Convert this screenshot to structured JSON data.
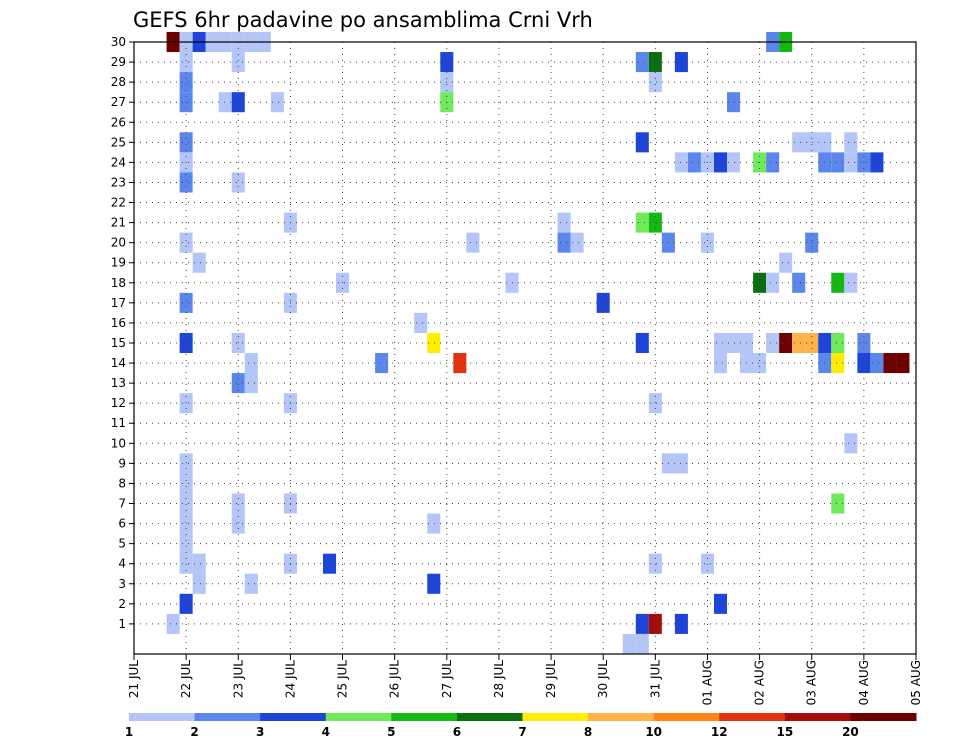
{
  "chart_data": {
    "type": "heatmap",
    "title": "GEFS 6hr padavine po ansamblima Crni Vrh",
    "xlabel": "",
    "ylabel": "",
    "x_ticks": [
      "21 JUL",
      "22 JUL",
      "23 JUL",
      "24 JUL",
      "25 JUL",
      "26 JUL",
      "27 JUL",
      "28 JUL",
      "29 JUL",
      "30 JUL",
      "31 JUL",
      "01 AUG",
      "02 AUG",
      "03 AUG",
      "04 AUG",
      "05 AUG"
    ],
    "y_ticks": [
      "1",
      "2",
      "3",
      "4",
      "5",
      "6",
      "7",
      "8",
      "9",
      "10",
      "11",
      "12",
      "13",
      "14",
      "15",
      "16",
      "17",
      "18",
      "19",
      "20",
      "21",
      "22",
      "23",
      "24",
      "25",
      "26",
      "27",
      "28",
      "29",
      "30"
    ],
    "time_steps_6hr": 61,
    "ensemble_members": 30,
    "grid": true,
    "colorbar": {
      "labels": [
        "1",
        "2",
        "3",
        "4",
        "5",
        "6",
        "7",
        "8",
        "10",
        "12",
        "15",
        "20"
      ],
      "colors": [
        "#b3c6f7",
        "#5b87ec",
        "#1f45d8",
        "#6fea5a",
        "#13b812",
        "#0b6e10",
        "#ffee00",
        "#ffb14a",
        "#ff8418",
        "#e0330e",
        "#a40d0d",
        "#6e0000"
      ]
    },
    "cells": [
      [
        3,
        30,
        "#6e0000"
      ],
      [
        4,
        30,
        "#b3c6f7"
      ],
      [
        5,
        30,
        "#1f45d8"
      ],
      [
        6,
        30,
        "#b3c6f7"
      ],
      [
        7,
        30,
        "#b3c6f7"
      ],
      [
        8,
        30,
        "#b3c6f7"
      ],
      [
        9,
        30,
        "#b3c6f7"
      ],
      [
        10,
        30,
        "#b3c6f7"
      ],
      [
        49,
        30,
        "#5b87ec"
      ],
      [
        50,
        30,
        "#13b812"
      ],
      [
        4,
        29,
        "#b3c6f7"
      ],
      [
        8,
        29,
        "#b3c6f7"
      ],
      [
        24,
        29,
        "#1f45d8"
      ],
      [
        39,
        29,
        "#5b87ec"
      ],
      [
        40,
        29,
        "#0b6e10"
      ],
      [
        42,
        29,
        "#1f45d8"
      ],
      [
        4,
        28,
        "#5b87ec"
      ],
      [
        24,
        28,
        "#b3c6f7"
      ],
      [
        40,
        28,
        "#b3c6f7"
      ],
      [
        4,
        27,
        "#5b87ec"
      ],
      [
        7,
        27,
        "#b3c6f7"
      ],
      [
        8,
        27,
        "#1f45d8"
      ],
      [
        11,
        27,
        "#b3c6f7"
      ],
      [
        24,
        27,
        "#6fea5a"
      ],
      [
        46,
        27,
        "#5b87ec"
      ],
      [
        4,
        25,
        "#5b87ec"
      ],
      [
        39,
        25,
        "#1f45d8"
      ],
      [
        51,
        25,
        "#b3c6f7"
      ],
      [
        52,
        25,
        "#b3c6f7"
      ],
      [
        53,
        25,
        "#b3c6f7"
      ],
      [
        55,
        25,
        "#b3c6f7"
      ],
      [
        4,
        24,
        "#b3c6f7"
      ],
      [
        42,
        24,
        "#b3c6f7"
      ],
      [
        43,
        24,
        "#5b87ec"
      ],
      [
        44,
        24,
        "#b3c6f7"
      ],
      [
        45,
        24,
        "#1f45d8"
      ],
      [
        46,
        24,
        "#b3c6f7"
      ],
      [
        48,
        24,
        "#6fea5a"
      ],
      [
        49,
        24,
        "#5b87ec"
      ],
      [
        53,
        24,
        "#5b87ec"
      ],
      [
        54,
        24,
        "#5b87ec"
      ],
      [
        55,
        24,
        "#b3c6f7"
      ],
      [
        56,
        24,
        "#5b87ec"
      ],
      [
        57,
        24,
        "#1f45d8"
      ],
      [
        4,
        23,
        "#5b87ec"
      ],
      [
        8,
        23,
        "#b3c6f7"
      ],
      [
        12,
        21,
        "#b3c6f7"
      ],
      [
        33,
        21,
        "#b3c6f7"
      ],
      [
        39,
        21,
        "#6fea5a"
      ],
      [
        40,
        21,
        "#13b812"
      ],
      [
        4,
        20,
        "#b3c6f7"
      ],
      [
        26,
        20,
        "#b3c6f7"
      ],
      [
        33,
        20,
        "#5b87ec"
      ],
      [
        34,
        20,
        "#b3c6f7"
      ],
      [
        41,
        20,
        "#5b87ec"
      ],
      [
        44,
        20,
        "#b3c6f7"
      ],
      [
        52,
        20,
        "#5b87ec"
      ],
      [
        5,
        19,
        "#b3c6f7"
      ],
      [
        50,
        19,
        "#b3c6f7"
      ],
      [
        16,
        18,
        "#b3c6f7"
      ],
      [
        29,
        18,
        "#b3c6f7"
      ],
      [
        48,
        18,
        "#0b6e10"
      ],
      [
        49,
        18,
        "#b3c6f7"
      ],
      [
        51,
        18,
        "#5b87ec"
      ],
      [
        54,
        18,
        "#13b812"
      ],
      [
        55,
        18,
        "#b3c6f7"
      ],
      [
        4,
        17,
        "#5b87ec"
      ],
      [
        12,
        17,
        "#b3c6f7"
      ],
      [
        36,
        17,
        "#1f45d8"
      ],
      [
        22,
        16,
        "#b3c6f7"
      ],
      [
        4,
        15,
        "#1f45d8"
      ],
      [
        8,
        15,
        "#b3c6f7"
      ],
      [
        23,
        15,
        "#ffee00"
      ],
      [
        39,
        15,
        "#1f45d8"
      ],
      [
        45,
        15,
        "#b3c6f7"
      ],
      [
        46,
        15,
        "#b3c6f7"
      ],
      [
        47,
        15,
        "#b3c6f7"
      ],
      [
        49,
        15,
        "#b3c6f7"
      ],
      [
        50,
        15,
        "#6e0000"
      ],
      [
        51,
        15,
        "#ffb14a"
      ],
      [
        52,
        15,
        "#ffb14a"
      ],
      [
        53,
        15,
        "#1f45d8"
      ],
      [
        54,
        15,
        "#6fea5a"
      ],
      [
        56,
        15,
        "#5b87ec"
      ],
      [
        9,
        14,
        "#b3c6f7"
      ],
      [
        19,
        14,
        "#5b87ec"
      ],
      [
        25,
        14,
        "#e0330e"
      ],
      [
        45,
        14,
        "#b3c6f7"
      ],
      [
        47,
        14,
        "#b3c6f7"
      ],
      [
        48,
        14,
        "#b3c6f7"
      ],
      [
        53,
        14,
        "#5b87ec"
      ],
      [
        54,
        14,
        "#ffee00"
      ],
      [
        56,
        14,
        "#1f45d8"
      ],
      [
        57,
        14,
        "#5b87ec"
      ],
      [
        58,
        14,
        "#6e0000"
      ],
      [
        59,
        14,
        "#6e0000"
      ],
      [
        8,
        13,
        "#5b87ec"
      ],
      [
        9,
        13,
        "#b3c6f7"
      ],
      [
        4,
        12,
        "#b3c6f7"
      ],
      [
        12,
        12,
        "#b3c6f7"
      ],
      [
        40,
        12,
        "#b3c6f7"
      ],
      [
        55,
        10,
        "#b3c6f7"
      ],
      [
        4,
        9,
        "#b3c6f7"
      ],
      [
        41,
        9,
        "#b3c6f7"
      ],
      [
        42,
        9,
        "#b3c6f7"
      ],
      [
        4,
        8,
        "#b3c6f7"
      ],
      [
        4,
        7,
        "#b3c6f7"
      ],
      [
        8,
        7,
        "#b3c6f7"
      ],
      [
        12,
        7,
        "#b3c6f7"
      ],
      [
        54,
        7,
        "#6fea5a"
      ],
      [
        4,
        6,
        "#b3c6f7"
      ],
      [
        8,
        6,
        "#b3c6f7"
      ],
      [
        23,
        6,
        "#b3c6f7"
      ],
      [
        4,
        5,
        "#b3c6f7"
      ],
      [
        4,
        4,
        "#b3c6f7"
      ],
      [
        5,
        4,
        "#b3c6f7"
      ],
      [
        12,
        4,
        "#b3c6f7"
      ],
      [
        15,
        4,
        "#1f45d8"
      ],
      [
        40,
        4,
        "#b3c6f7"
      ],
      [
        44,
        4,
        "#b3c6f7"
      ],
      [
        5,
        3,
        "#b3c6f7"
      ],
      [
        9,
        3,
        "#b3c6f7"
      ],
      [
        23,
        3,
        "#1f45d8"
      ],
      [
        4,
        2,
        "#1f45d8"
      ],
      [
        45,
        2,
        "#1f45d8"
      ],
      [
        3,
        1,
        "#b3c6f7"
      ],
      [
        39,
        1,
        "#1f45d8"
      ],
      [
        40,
        1,
        "#a40d0d"
      ],
      [
        42,
        1,
        "#1f45d8"
      ],
      [
        38,
        0,
        "#b3c6f7"
      ],
      [
        39,
        0,
        "#b3c6f7"
      ]
    ]
  }
}
